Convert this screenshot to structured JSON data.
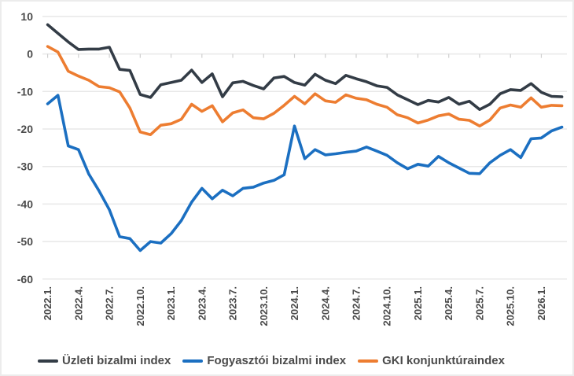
{
  "chart_data": {
    "type": "line",
    "title": "",
    "xlabel": "",
    "ylabel": "",
    "ylim": [
      -60,
      10
    ],
    "y_ticks": [
      10,
      0,
      -10,
      -20,
      -30,
      -40,
      -50,
      -60
    ],
    "grid": "horizontal",
    "legend_position": "bottom",
    "x_unit": "month",
    "n_points": 51,
    "x_tick_every": 3,
    "x_tick_labels": [
      "2022.1.",
      "2022.4.",
      "2022.7.",
      "2022.10.",
      "2023.1.",
      "2023.4.",
      "2023.7.",
      "2023.10.",
      "2024.1.",
      "2024.4.",
      "2024.7.",
      "2024.10.",
      "2025.1.",
      "2025.4.",
      "2025.7.",
      "2025.10.",
      "2026.1."
    ],
    "series": [
      {
        "name": "Üzleti bizalmi index",
        "color": "#333c46",
        "values": [
          7.8,
          5.5,
          3.2,
          1.2,
          1.3,
          1.3,
          1.8,
          -4.1,
          -4.4,
          -10.8,
          -11.6,
          -8.2,
          -7.6,
          -7.0,
          -4.3,
          -7.6,
          -5.3,
          -11.4,
          -7.7,
          -7.3,
          -8.4,
          -9.3,
          -6.4,
          -6.0,
          -7.6,
          -8.3,
          -5.4,
          -7.0,
          -7.9,
          -5.7,
          -6.6,
          -7.4,
          -8.5,
          -8.9,
          -10.9,
          -12.2,
          -13.5,
          -12.4,
          -12.8,
          -11.6,
          -13.4,
          -12.6,
          -14.8,
          -13.4,
          -10.6,
          -9.5,
          -9.7,
          -7.9,
          -10.2,
          -11.3,
          -11.4
        ]
      },
      {
        "name": "Fogyasztói bizalmi index",
        "color": "#1b6fc1",
        "values": [
          -13.3,
          -11.0,
          -24.5,
          -25.5,
          -32.0,
          -36.5,
          -41.5,
          -48.7,
          -49.2,
          -52.4,
          -50.0,
          -50.4,
          -47.9,
          -44.4,
          -39.5,
          -35.8,
          -38.6,
          -36.3,
          -37.8,
          -35.8,
          -35.5,
          -34.4,
          -33.7,
          -32.2,
          -19.2,
          -27.9,
          -25.5,
          -26.9,
          -26.6,
          -26.2,
          -25.9,
          -24.8,
          -25.9,
          -27.0,
          -29.0,
          -30.6,
          -29.4,
          -29.9,
          -27.3,
          -29.0,
          -30.4,
          -31.8,
          -31.9,
          -29.0,
          -27.0,
          -25.5,
          -27.6,
          -22.6,
          -22.4,
          -20.5,
          -19.5
        ]
      },
      {
        "name": "GKI konjunktúraindex",
        "color": "#ed7d31",
        "values": [
          2.0,
          0.5,
          -4.6,
          -5.9,
          -7.0,
          -8.7,
          -9.0,
          -10.1,
          -14.4,
          -20.8,
          -21.5,
          -19.0,
          -18.6,
          -17.4,
          -13.4,
          -15.3,
          -13.8,
          -18.1,
          -15.7,
          -14.9,
          -17.0,
          -17.3,
          -15.8,
          -13.7,
          -11.3,
          -13.3,
          -10.6,
          -12.5,
          -12.9,
          -10.9,
          -11.8,
          -12.2,
          -13.4,
          -14.2,
          -16.2,
          -17.0,
          -18.4,
          -17.6,
          -16.5,
          -16.0,
          -17.4,
          -17.7,
          -19.2,
          -17.6,
          -14.4,
          -13.6,
          -14.2,
          -11.7,
          -14.2,
          -13.7,
          -13.8
        ]
      }
    ]
  },
  "colors": {
    "text": "#4b4b4b",
    "grid": "#e8e8e8",
    "tick": "#cfcfcf",
    "background": "#ffffff",
    "frame": "#ececec"
  }
}
